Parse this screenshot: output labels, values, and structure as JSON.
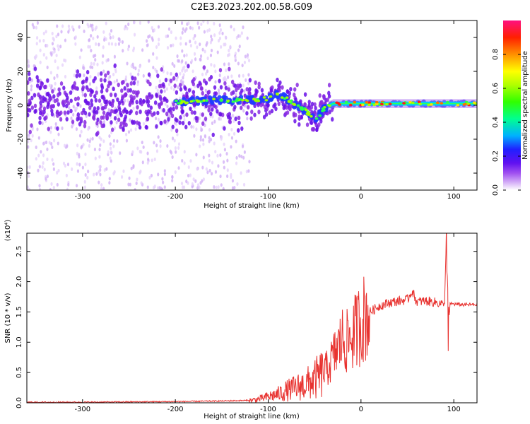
{
  "title": "C2E3.2023.202.00.58.G09",
  "chart_data": [
    {
      "type": "heatmap",
      "xlabel": "Height of straight line (km)",
      "ylabel": "Frequency (Hz)",
      "xlim": [
        -360,
        125
      ],
      "ylim": [
        -50,
        50
      ],
      "x_ticks": [
        -300,
        -200,
        -100,
        0,
        100
      ],
      "y_ticks": [
        -40,
        -20,
        0,
        20,
        40
      ],
      "colorbar": {
        "label": "Normalized spectral amplitude",
        "range": [
          0,
          1
        ],
        "ticks": [
          0.0,
          0.2,
          0.4,
          0.6,
          0.8
        ],
        "tick_labels": [
          "0.0",
          "0.2",
          "0.4",
          "0.6",
          "0.8"
        ]
      },
      "ridge": {
        "x": [
          -360,
          -300,
          -250,
          -200,
          -150,
          -120,
          -100,
          -90,
          -80,
          -70,
          -60,
          -50,
          -45,
          -40,
          -30,
          -20,
          -10,
          0,
          50,
          90,
          125
        ],
        "freq_center": [
          2,
          2,
          1,
          2,
          3,
          3,
          4,
          6,
          4,
          0,
          -3,
          -8,
          -6,
          -2,
          1,
          1,
          1,
          1,
          1,
          1,
          1
        ]
      },
      "grid": false
    },
    {
      "type": "line",
      "xlabel": "Height of straight line (km)",
      "ylabel": "SNR (10 * v/v)",
      "y_scale_label": "(x10⁴)",
      "xlim": [
        -360,
        125
      ],
      "ylim": [
        0,
        2.8
      ],
      "x_ticks": [
        -300,
        -200,
        -100,
        0,
        100
      ],
      "y_ticks": [
        0.0,
        0.5,
        1.0,
        1.5,
        2.0,
        2.5
      ],
      "y_tick_labels": [
        "0.0",
        "0.5",
        "1.0",
        "1.5",
        "2.0",
        "2.5"
      ],
      "series": [
        {
          "color": "#e8322f",
          "x": [
            -360,
            -300,
            -200,
            -150,
            -120,
            -110,
            -100,
            -90,
            -80,
            -70,
            -60,
            -50,
            -40,
            -35,
            -30,
            -25,
            -20,
            -15,
            -10,
            -5,
            0,
            10,
            20,
            30,
            40,
            50,
            55,
            60,
            70,
            80,
            90,
            92,
            94,
            96,
            100,
            110,
            125
          ],
          "y": [
            0.01,
            0.01,
            0.02,
            0.03,
            0.04,
            0.06,
            0.1,
            0.14,
            0.2,
            0.25,
            0.3,
            0.38,
            0.5,
            0.6,
            0.75,
            0.9,
            1.05,
            1.0,
            1.1,
            1.2,
            1.35,
            1.5,
            1.6,
            1.65,
            1.68,
            1.7,
            1.85,
            1.67,
            1.68,
            1.66,
            1.62,
            2.75,
            1.2,
            1.64,
            1.63,
            1.62,
            1.62
          ]
        }
      ],
      "grid": false
    }
  ]
}
